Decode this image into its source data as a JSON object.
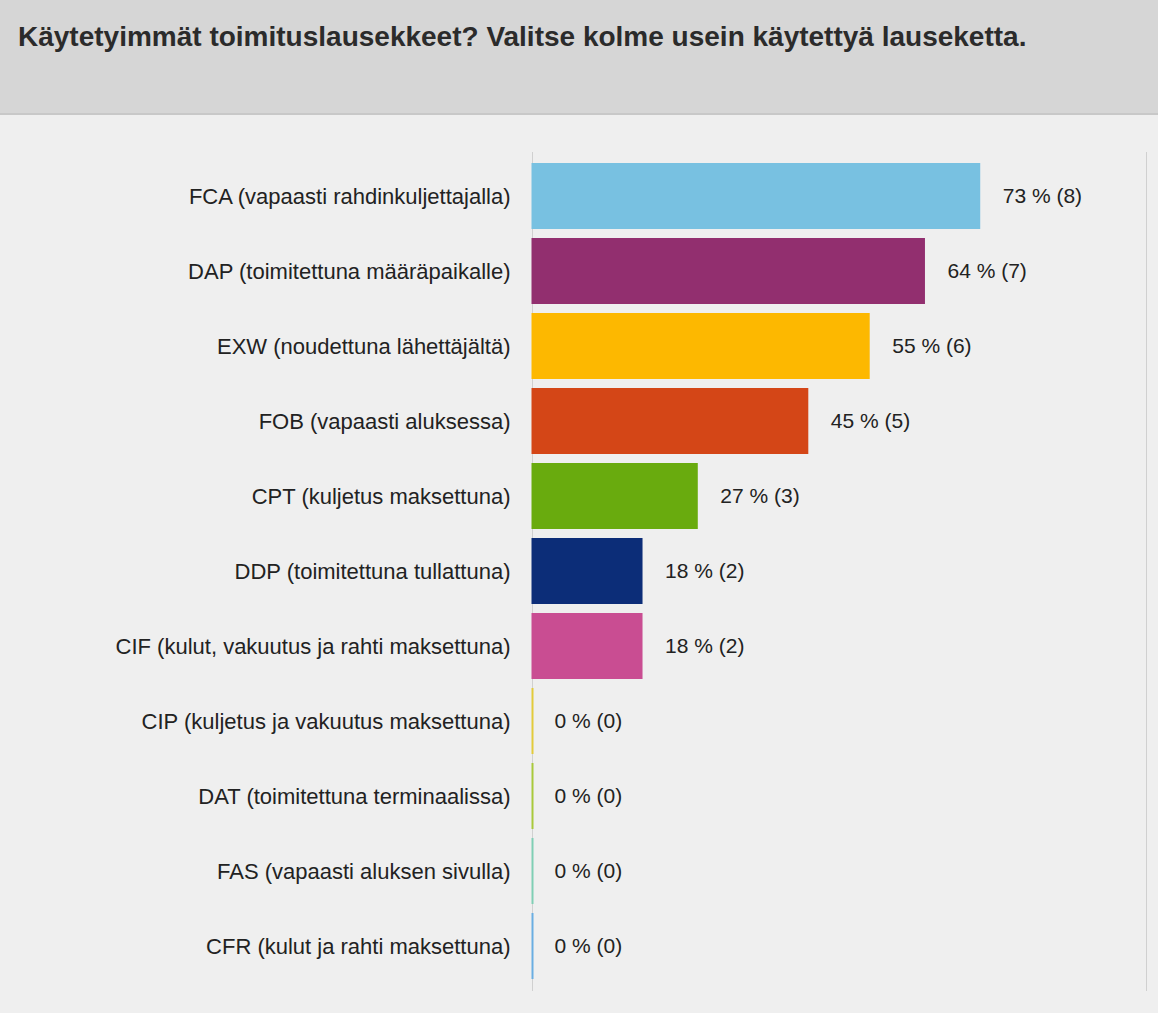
{
  "chart_data": {
    "type": "bar",
    "title": "Käytetyimmät toimituslausekkeet? Valitse kolme usein käytettyä lauseketta.",
    "orientation": "horizontal",
    "categories": [
      "FCA (vapaasti rahdinkuljettajalla)",
      "DAP (toimitettuna määräpaikalle)",
      "EXW (noudettuna lähettäjältä)",
      "FOB (vapaasti aluksessa)",
      "CPT (kuljetus maksettuna)",
      "DDP (toimitettuna tullattuna)",
      "CIF (kulut, vakuutus ja rahti maksettuna)",
      "CIP (kuljetus ja vakuutus maksettuna)",
      "DAT (toimitettuna terminaalissa)",
      "FAS (vapaasti aluksen sivulla)",
      "CFR (kulut ja rahti maksettuna)"
    ],
    "values": [
      73,
      64,
      55,
      45,
      27,
      18,
      18,
      0,
      0,
      0,
      0
    ],
    "value_labels": [
      "73 % (8)",
      "64 % (7)",
      "55 % (6)",
      "45 % (5)",
      "27 % (3)",
      "18 % (2)",
      "18 % (2)",
      "0 % (0)",
      "0 % (0)",
      "0 % (0)",
      "0 % (0)"
    ],
    "colors": [
      "#78c1e1",
      "#922f6f",
      "#fdb800",
      "#d44617",
      "#69ab0e",
      "#0c2d78",
      "#c94d92",
      "#e2cb3b",
      "#a9c93b",
      "#80cfb5",
      "#6aaee2"
    ],
    "xlim": [
      0,
      100
    ],
    "data_labels": true,
    "tick_labels": "y"
  }
}
